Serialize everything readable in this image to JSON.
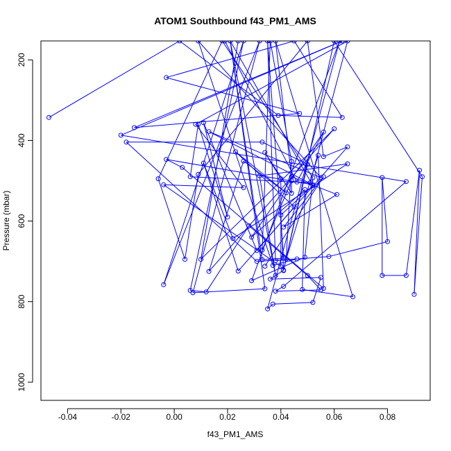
{
  "chart_data": {
    "type": "line",
    "title": "ATOM1 Southbound f43_PM1_AMS",
    "xlabel": "f43_PM1_AMS",
    "ylabel": "Pressure (mbar)",
    "xlim": [
      -0.05,
      0.096
    ],
    "ylim": [
      1045,
      153
    ],
    "y_reversed": true,
    "xticks": [
      -0.04,
      -0.02,
      0.0,
      0.02,
      0.04,
      0.06,
      0.08
    ],
    "xtick_labels": [
      "-0.04",
      "-0.02",
      "0.00",
      "0.02",
      "0.04",
      "0.06",
      "0.08"
    ],
    "yticks": [
      200,
      400,
      600,
      800,
      1000
    ],
    "ytick_labels": [
      "200",
      "400",
      "600",
      "800",
      "1000"
    ],
    "grid": false,
    "series": [
      {
        "color": "#0000ff",
        "style": "line+circles",
        "points": [
          [
            -0.047,
            343
          ],
          [
            0.002,
            153
          ],
          [
            0.039,
            338
          ],
          [
            0.063,
            343
          ],
          [
            0.045,
            153
          ],
          [
            -0.003,
            244
          ],
          [
            0.047,
            333
          ],
          [
            -0.015,
            368
          ],
          [
            0.063,
            153
          ],
          [
            -0.02,
            387
          ],
          [
            0.087,
            502
          ],
          [
            0.041,
            762
          ],
          [
            0.038,
            774
          ],
          [
            0.055,
            771
          ],
          [
            0.05,
            735
          ],
          [
            0.028,
            612
          ],
          [
            0.012,
            776
          ],
          [
            0.006,
            772
          ],
          [
            0.026,
            153
          ],
          [
            -0.004,
            758
          ],
          [
            0.032,
            153
          ],
          [
            0.007,
            778
          ],
          [
            0.034,
            768
          ],
          [
            0.021,
            153
          ],
          [
            0.033,
            696
          ],
          [
            0.041,
            692
          ],
          [
            0.035,
            153
          ],
          [
            0.038,
            698
          ],
          [
            0.058,
            688
          ],
          [
            0.08,
            651
          ],
          [
            0.078,
            492
          ],
          [
            0.078,
            735
          ],
          [
            0.087,
            735
          ],
          [
            0.092,
            474
          ],
          [
            0.09,
            782
          ],
          [
            0.093,
            490
          ],
          [
            0.06,
            153
          ],
          [
            0.041,
            722
          ],
          [
            0.036,
            744
          ],
          [
            0.055,
            740
          ],
          [
            0.052,
            802
          ],
          [
            0.037,
            806
          ],
          [
            0.035,
            818
          ],
          [
            0.062,
            153
          ],
          [
            0.029,
            748
          ],
          [
            0.049,
            690
          ],
          [
            0.052,
            493
          ],
          [
            0.018,
            153
          ],
          [
            -0.006,
            495
          ],
          [
            0.004,
            695
          ],
          [
            0.009,
            484
          ],
          [
            0.05,
            153
          ],
          [
            0.056,
            440
          ],
          [
            0.065,
            416
          ],
          [
            0.024,
            724
          ],
          [
            0.011,
            456
          ],
          [
            0.022,
            643
          ],
          [
            0.065,
            458
          ],
          [
            0.032,
            488
          ],
          [
            0.038,
            735
          ],
          [
            0.021,
            153
          ],
          [
            0.052,
            512
          ],
          [
            0.04,
            585
          ],
          [
            0.041,
            723
          ],
          [
            0.05,
            459
          ],
          [
            0.033,
            404
          ],
          [
            -0.018,
            404
          ],
          [
            0.031,
            700
          ],
          [
            0.046,
            694
          ],
          [
            0.037,
            710
          ],
          [
            0.009,
            153
          ],
          [
            0.055,
            492
          ],
          [
            0.013,
            378
          ],
          [
            0.052,
            510
          ],
          [
            -0.003,
            447
          ],
          [
            0.003,
            467
          ],
          [
            0.056,
            767
          ],
          [
            0.054,
            437
          ],
          [
            0.042,
            694
          ],
          [
            0.044,
            452
          ],
          [
            0.036,
            153
          ],
          [
            0.033,
            672
          ],
          [
            0.044,
            500
          ],
          [
            0.044,
            531
          ],
          [
            0.034,
            430
          ],
          [
            0.04,
            495
          ],
          [
            0.04,
            713
          ],
          [
            -0.004,
            510
          ],
          [
            0.026,
            517
          ],
          [
            0.008,
            360
          ],
          [
            0.065,
            153
          ],
          [
            0.051,
            505
          ],
          [
            0.006,
            490
          ],
          [
            0.009,
            360
          ],
          [
            0.02,
            590
          ],
          [
            0.011,
            356
          ],
          [
            0.031,
            673
          ],
          [
            0.045,
            565
          ],
          [
            0.023,
            428
          ],
          [
            0.042,
            530
          ],
          [
            0.026,
            451
          ],
          [
            0.013,
            725
          ],
          [
            0.06,
            371
          ],
          [
            0.01,
            695
          ],
          [
            0.024,
            153
          ],
          [
            0.019,
            153
          ],
          [
            0.046,
            503
          ],
          [
            0.056,
            379
          ],
          [
            0.029,
            640
          ],
          [
            0.049,
            522
          ],
          [
            0.048,
            770
          ],
          [
            0.067,
            788
          ],
          [
            0.038,
            153
          ],
          [
            0.044,
            490
          ],
          [
            0.061,
            534
          ],
          [
            0.041,
            615
          ],
          [
            0.056,
            490
          ],
          [
            0.034,
            712
          ]
        ]
      }
    ]
  }
}
